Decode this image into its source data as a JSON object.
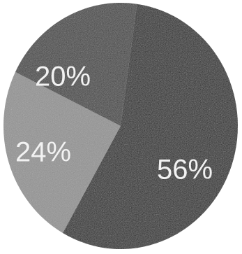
{
  "chart_data": {
    "type": "pie",
    "slices": [
      {
        "label": "56%",
        "value": 56,
        "color": "#1f1f1f"
      },
      {
        "label": "24%",
        "value": 24,
        "color": "#8c8c8c"
      },
      {
        "label": "20%",
        "value": 20,
        "color": "#3d3d3d"
      }
    ],
    "title": "",
    "legend": "none"
  }
}
